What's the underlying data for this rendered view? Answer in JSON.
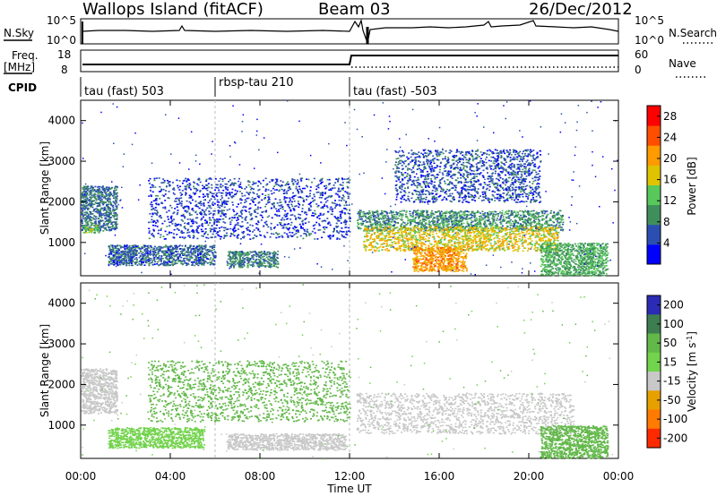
{
  "header": {
    "title": "Wallops Island (fitACF)",
    "beam": "Beam 03",
    "date": "26/Dec/2012"
  },
  "noise_panel": {
    "left_label": "N.Sky",
    "right_label": "N.Search",
    "ticks_left": [
      "10^5",
      "10^0"
    ],
    "ticks_right": [
      "10^5",
      "10^0"
    ]
  },
  "freq_panel": {
    "left_label_1": "Freq.",
    "left_label_2": "[MHz]",
    "right_label": "Nave",
    "ticks_left": [
      "18",
      "8"
    ],
    "ticks_right": [
      "60",
      "0"
    ]
  },
  "cpid_panel": {
    "label": "CPID",
    "segments": [
      {
        "name": "tau (fast) 503",
        "start_hour": 0,
        "end_hour": 6
      },
      {
        "name": "rbsp-tau 210",
        "start_hour": 6,
        "end_hour": 12
      },
      {
        "name": "tau (fast) -503",
        "start_hour": 12,
        "end_hour": 24
      }
    ]
  },
  "colors": {
    "power": [
      "#0000ff",
      "#2a4fb0",
      "#3f8f5c",
      "#58c85a",
      "#e0c300",
      "#ff9a00",
      "#ff4e00",
      "#ff0000"
    ],
    "velocity": [
      "#2b2bb5",
      "#3d7d4f",
      "#63b84a",
      "#72d34c",
      "#c8c8c8",
      "#e6a000",
      "#ff7a00",
      "#ff2a00"
    ]
  },
  "chart_data": [
    {
      "type": "heatmap",
      "name": "power",
      "xlabel": "",
      "ylabel": "Slant Range [km]",
      "xlim": [
        0,
        24
      ],
      "ylim": [
        180,
        4500
      ],
      "yticks": [
        "1000",
        "2000",
        "3000",
        "4000"
      ],
      "colorbar": {
        "label": "Power [dB]",
        "ticks": [
          "4",
          "8",
          "12",
          "16",
          "20",
          "24",
          "28"
        ],
        "range": [
          0,
          30
        ]
      },
      "features": [
        {
          "t0": 0.0,
          "t1": 1.6,
          "r0": 1300,
          "r1": 2400,
          "level": 8
        },
        {
          "t0": 0.1,
          "t1": 0.8,
          "r0": 1250,
          "r1": 1450,
          "level": 14
        },
        {
          "t0": 1.2,
          "t1": 6.0,
          "r0": 450,
          "r1": 950,
          "level": 7
        },
        {
          "t0": 6.5,
          "t1": 8.8,
          "r0": 400,
          "r1": 800,
          "level": 9
        },
        {
          "t0": 3.0,
          "t1": 12.0,
          "r0": 1100,
          "r1": 2600,
          "level": 5
        },
        {
          "t0": 12.3,
          "t1": 21.5,
          "r0": 1300,
          "r1": 1800,
          "level": 10
        },
        {
          "t0": 12.6,
          "t1": 21.3,
          "r0": 800,
          "r1": 1400,
          "level": 18
        },
        {
          "t0": 14.8,
          "t1": 17.2,
          "r0": 300,
          "r1": 900,
          "level": 22
        },
        {
          "t0": 20.5,
          "t1": 23.5,
          "r0": 200,
          "r1": 1000,
          "level": 12
        },
        {
          "t0": 14.0,
          "t1": 20.5,
          "r0": 2000,
          "r1": 3300,
          "level": 6
        }
      ]
    },
    {
      "type": "heatmap",
      "name": "velocity",
      "xlabel": "Time UT",
      "ylabel": "Slant Range [km]",
      "xlim": [
        0,
        24
      ],
      "ylim": [
        180,
        4500
      ],
      "xticks": [
        "00:00",
        "04:00",
        "08:00",
        "12:00",
        "16:00",
        "20:00",
        "00:00"
      ],
      "yticks": [
        "1000",
        "2000",
        "3000",
        "4000"
      ],
      "colorbar": {
        "label": "Velocity [m s^-1]",
        "ticks": [
          "200",
          "100",
          "50",
          "15",
          "-15",
          "-50",
          "-100",
          "-200"
        ]
      },
      "features": [
        {
          "t0": 0.0,
          "t1": 1.6,
          "r0": 1300,
          "r1": 2400,
          "level": 0
        },
        {
          "t0": 1.2,
          "t1": 5.5,
          "r0": 450,
          "r1": 950,
          "level": 30
        },
        {
          "t0": 6.5,
          "t1": 11.8,
          "r0": 400,
          "r1": 800,
          "level": 0
        },
        {
          "t0": 12.3,
          "t1": 22.0,
          "r0": 800,
          "r1": 1800,
          "level": 0
        },
        {
          "t0": 3.0,
          "t1": 12.0,
          "r0": 1100,
          "r1": 2600,
          "level": 20
        },
        {
          "t0": 20.5,
          "t1": 23.5,
          "r0": 200,
          "r1": 1000,
          "level": 20
        }
      ]
    }
  ]
}
